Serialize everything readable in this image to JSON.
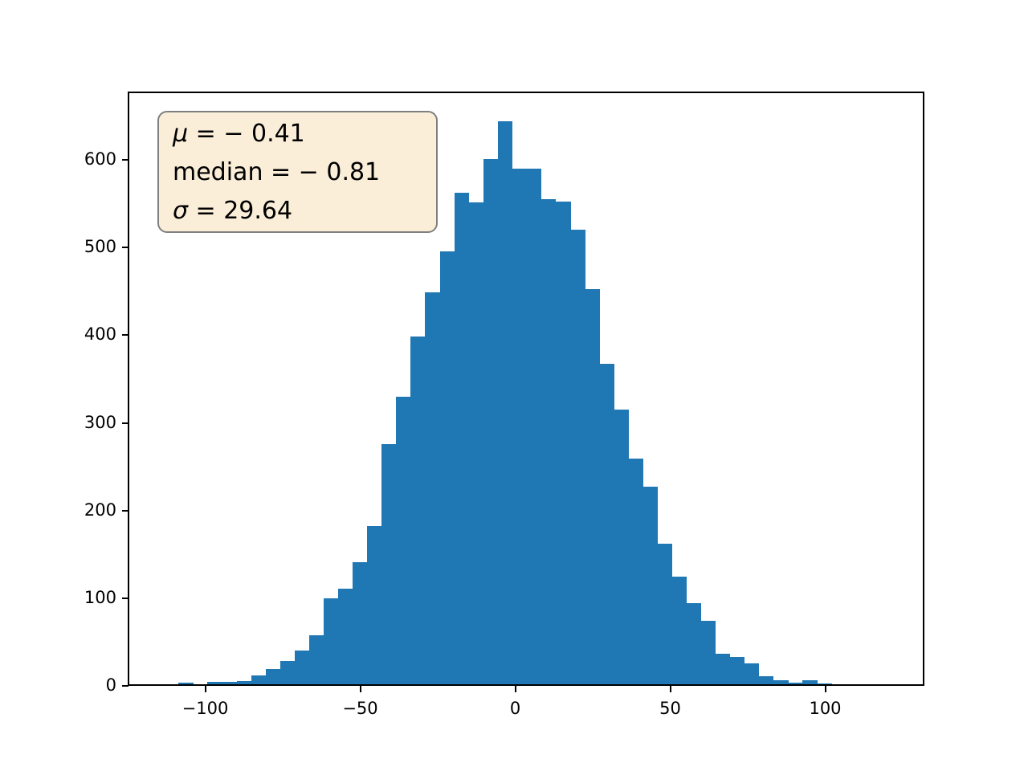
{
  "chart_data": {
    "type": "bar",
    "subtype": "histogram",
    "title": "",
    "xlabel": "",
    "ylabel": "",
    "bar_color": "#1f77b4",
    "background_color": "#ffffff",
    "grid": false,
    "legend": null,
    "xlim": [
      -124.8,
      132.3
    ],
    "ylim": [
      0,
      676.6
    ],
    "bins": {
      "start": -108.6,
      "width": 4.68,
      "count": 45
    },
    "counts": [
      4,
      0,
      5,
      5,
      6,
      12,
      20,
      29,
      41,
      58,
      100,
      111,
      141,
      183,
      276,
      330,
      399,
      449,
      496,
      562,
      551,
      601,
      644,
      590,
      590,
      555,
      552,
      520,
      453,
      367,
      315,
      259,
      227,
      162,
      125,
      95,
      75,
      37,
      33,
      26,
      11,
      7,
      4,
      7,
      3
    ],
    "x_ticks": {
      "values": [
        -100,
        -50,
        0,
        50,
        100
      ],
      "labels": [
        "−100",
        "−50",
        "0",
        "50",
        "100"
      ]
    },
    "y_ticks": {
      "values": [
        0,
        100,
        200,
        300,
        400,
        500,
        600
      ],
      "labels": [
        "0",
        "100",
        "200",
        "300",
        "400",
        "500",
        "600"
      ]
    }
  },
  "annotation": {
    "lines": [
      {
        "symbol": "μ",
        "italic": true,
        "eq": "=",
        "value": "− 0.41"
      },
      {
        "symbol": "median",
        "italic": false,
        "eq": "=",
        "value": "− 0.81"
      },
      {
        "symbol": "σ",
        "italic": true,
        "eq": "=",
        "value": "29.64"
      }
    ],
    "stats": {
      "mu": -0.41,
      "median": -0.81,
      "sigma": 29.64
    }
  }
}
